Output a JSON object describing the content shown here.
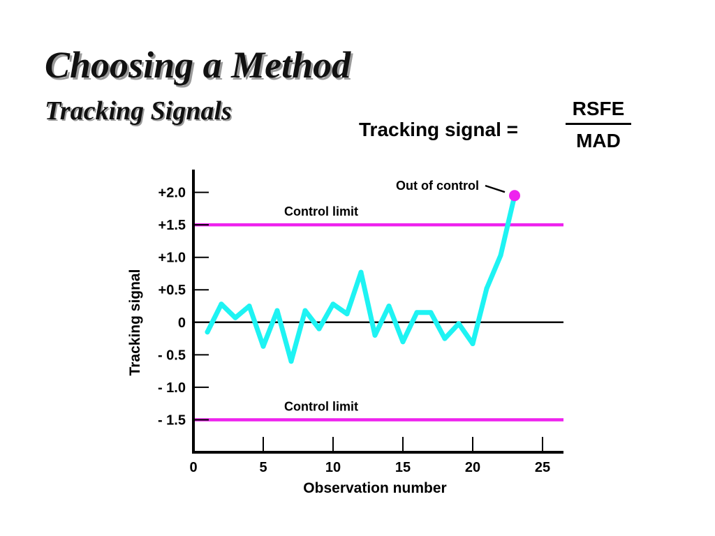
{
  "slide": {
    "title": "Choosing a Method",
    "subtitle": "Tracking Signals"
  },
  "formula": {
    "label": "Tracking signal =",
    "numerator": "RSFE",
    "denominator": "MAD"
  },
  "chart_data": {
    "type": "line",
    "xlabel": "Observation number",
    "ylabel": "Tracking signal",
    "xlim": [
      0,
      26.5
    ],
    "ylim": [
      -2.0,
      2.35
    ],
    "x_ticks": [
      0,
      5,
      10,
      15,
      20,
      25
    ],
    "x_tick_labels": [
      "0",
      "5",
      "10",
      "15",
      "20",
      "25"
    ],
    "y_ticks": [
      2.0,
      1.5,
      1.0,
      0.5,
      0,
      -0.5,
      -1.0,
      -1.5
    ],
    "y_tick_labels": [
      "+2.0",
      "+1.5",
      "+1.0",
      "+0.5",
      "0",
      "- 0.5",
      "- 1.0",
      "- 1.5"
    ],
    "grid": false,
    "series": [
      {
        "color": "#1ef3f3",
        "x": [
          1,
          2,
          3,
          4,
          5,
          6,
          7,
          8,
          9,
          10,
          11,
          12,
          13,
          14,
          15,
          16,
          17,
          18,
          19,
          20,
          21,
          22,
          23
        ],
        "y": [
          -0.15,
          0.28,
          0.07,
          0.25,
          -0.37,
          0.18,
          -0.6,
          0.18,
          -0.1,
          0.28,
          0.13,
          0.77,
          -0.2,
          0.25,
          -0.3,
          0.15,
          0.15,
          -0.25,
          -0.02,
          -0.33,
          0.52,
          1.03,
          1.95
        ]
      }
    ],
    "reference_lines": [
      {
        "y": 1.5,
        "label": "Control limit",
        "color": "#ee22ee"
      },
      {
        "y": -1.5,
        "label": "Control limit",
        "color": "#ee22ee"
      },
      {
        "y": 0,
        "label": "",
        "color": "#000000"
      }
    ],
    "highlight_point": {
      "x": 23,
      "y": 1.95,
      "color": "#ee22ee",
      "label": "Out of control"
    }
  }
}
